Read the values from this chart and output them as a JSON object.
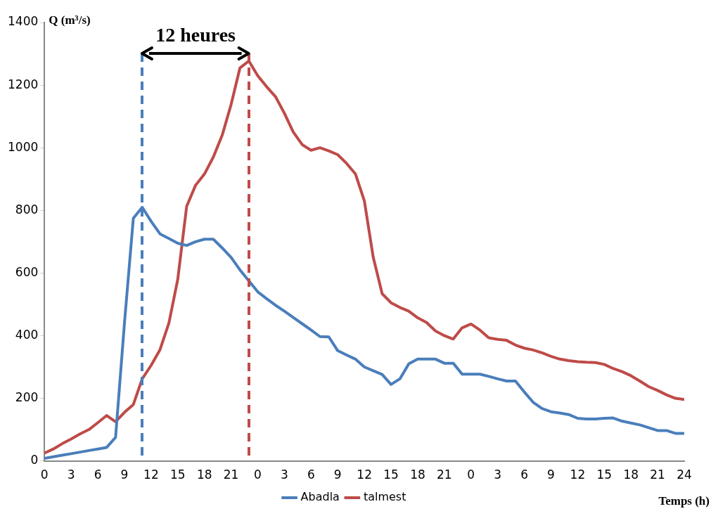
{
  "chart_data": {
    "type": "line",
    "xlabel": "Temps (h)",
    "ylabel": "Q (m³/s)",
    "categories": [
      "0",
      null,
      null,
      "3",
      null,
      null,
      "6",
      null,
      null,
      "9",
      null,
      null,
      "12",
      null,
      null,
      "15",
      null,
      null,
      "18",
      null,
      null,
      "21",
      null,
      null,
      "0",
      null,
      null,
      "3",
      null,
      null,
      "6",
      null,
      null,
      "9",
      null,
      null,
      "12",
      null,
      null,
      "15",
      null,
      null,
      "18",
      null,
      null,
      "21",
      null,
      null,
      "0",
      null,
      null,
      "3",
      null,
      null,
      "6",
      null,
      null,
      "9",
      null,
      null,
      "12",
      null,
      null,
      "15",
      null,
      null,
      "18",
      null,
      null,
      "21",
      null,
      null,
      "24"
    ],
    "series": [
      {
        "name": "Abadla",
        "color": "#4a7ebb",
        "values": [
          8,
          13,
          18,
          23,
          28,
          33,
          38,
          43,
          75,
          440,
          775,
          810,
          765,
          725,
          710,
          695,
          688,
          700,
          708,
          708,
          680,
          650,
          610,
          575,
          540,
          518,
          497,
          478,
          458,
          438,
          418,
          397,
          396,
          352,
          338,
          325,
          300,
          288,
          276,
          244,
          262,
          310,
          325,
          325,
          325,
          312,
          312,
          277,
          277,
          277,
          270,
          262,
          255,
          255,
          220,
          187,
          167,
          157,
          153,
          148,
          136,
          134,
          134,
          136,
          137,
          127,
          121,
          115,
          106,
          97,
          97,
          88,
          88
        ]
      },
      {
        "name": "talmest",
        "color": "#be4b48",
        "values": [
          25,
          38,
          55,
          70,
          86,
          100,
          122,
          145,
          125,
          155,
          180,
          262,
          305,
          355,
          440,
          580,
          813,
          880,
          916,
          970,
          1040,
          1138,
          1255,
          1277,
          1230,
          1195,
          1163,
          1110,
          1050,
          1010,
          992,
          1000,
          990,
          978,
          950,
          916,
          830,
          650,
          534,
          505,
          490,
          478,
          457,
          442,
          415,
          400,
          389,
          425,
          437,
          418,
          393,
          388,
          385,
          370,
          360,
          354,
          345,
          334,
          325,
          320,
          317,
          315,
          314,
          308,
          295,
          285,
          272,
          255,
          237,
          225,
          211,
          200,
          196
        ]
      }
    ],
    "ylim": [
      0,
      1400
    ],
    "yticks": [
      0,
      200,
      400,
      600,
      800,
      1000,
      1200,
      1400
    ],
    "annotations": [
      "12 heures"
    ],
    "grid": false,
    "legend": "bottom",
    "marker": "none",
    "line_style": "solid"
  }
}
